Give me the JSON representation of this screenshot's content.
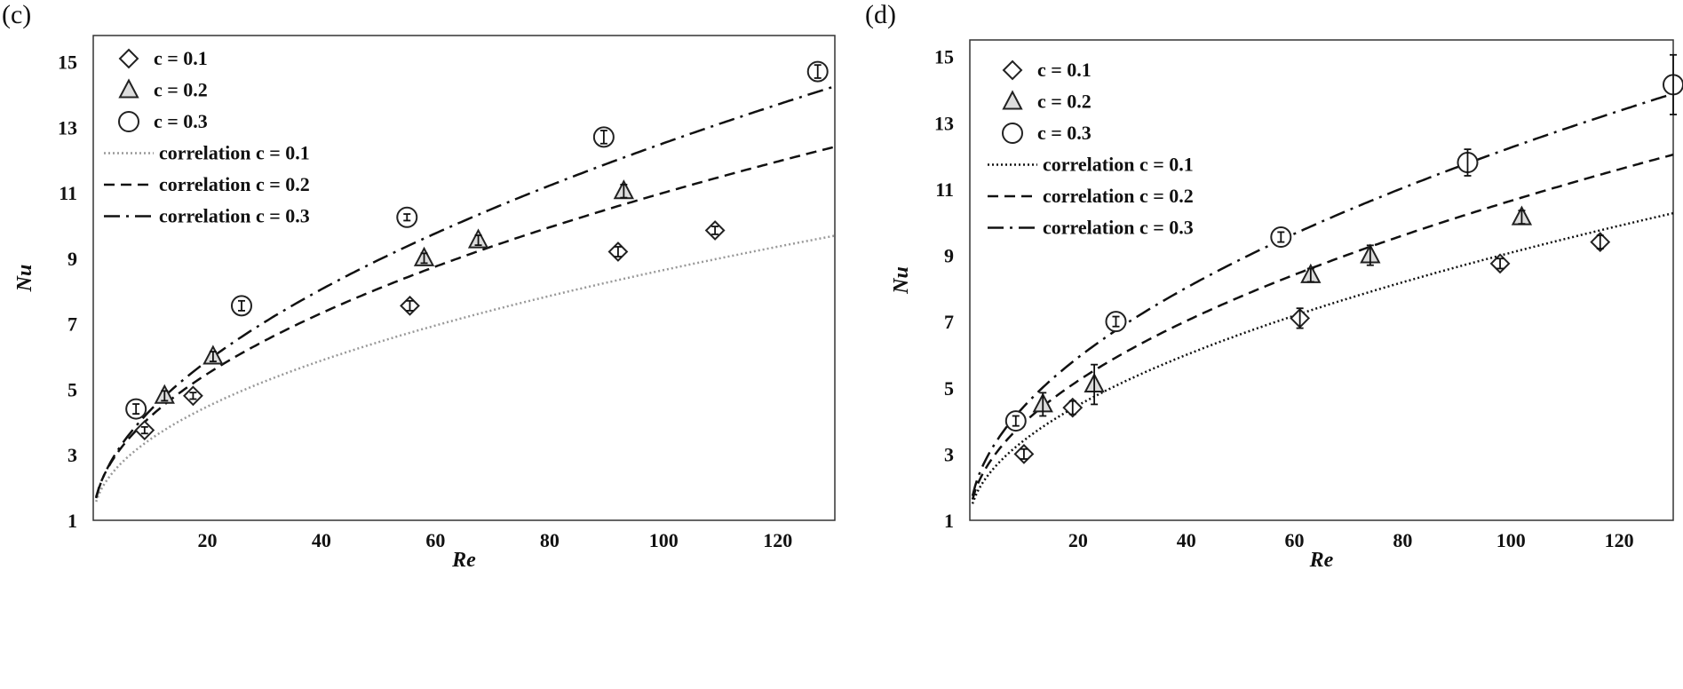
{
  "chart_data": [
    {
      "type": "scatter",
      "panel_label": "(c)",
      "xlabel": "Re",
      "ylabel": "Nu",
      "xlim": [
        0,
        130
      ],
      "ylim": [
        1,
        15.8
      ],
      "xticks": [
        20,
        40,
        60,
        80,
        100,
        120
      ],
      "yticks": [
        1,
        3,
        5,
        7,
        9,
        11,
        13,
        15
      ],
      "legend_position": "top-left",
      "series": [
        {
          "name": "c = 0.1",
          "marker": "diamond",
          "points": [
            [
              9,
              3.75
            ],
            [
              17.5,
              4.8
            ],
            [
              55.5,
              7.55
            ],
            [
              92,
              9.2
            ],
            [
              109,
              9.85
            ]
          ],
          "errors": [
            0.1,
            0.1,
            0.15,
            0.15,
            0.12
          ]
        },
        {
          "name": "c = 0.2",
          "marker": "triangle",
          "points": [
            [
              12.5,
              4.8
            ],
            [
              21,
              6.0
            ],
            [
              58,
              9.0
            ],
            [
              67.5,
              9.55
            ],
            [
              93,
              11.05
            ]
          ],
          "errors": [
            0.15,
            0.15,
            0.15,
            0.15,
            0.2
          ]
        },
        {
          "name": "c = 0.3",
          "marker": "circle",
          "points": [
            [
              7.5,
              4.4
            ],
            [
              26,
              7.55
            ],
            [
              55,
              10.25
            ],
            [
              89.5,
              12.7
            ],
            [
              127,
              14.7
            ]
          ],
          "errors": [
            0.15,
            0.15,
            0.1,
            0.2,
            0.2
          ]
        },
        {
          "name": "correlation c = 0.1",
          "style": "dotted",
          "color": "#999999",
          "a": 0.8,
          "b": 0.49
        },
        {
          "name": "correlation c = 0.2",
          "style": "dashed",
          "color": "#111111",
          "a": 1.0,
          "b": 0.5
        },
        {
          "name": "correlation c = 0.3",
          "style": "dashdot",
          "color": "#111111",
          "a": 0.98,
          "b": 0.535
        }
      ]
    },
    {
      "type": "scatter",
      "panel_label": "(d)",
      "xlabel": "Re",
      "ylabel": "Nu",
      "xlim": [
        0,
        130
      ],
      "ylim": [
        1,
        15.5
      ],
      "xticks": [
        20,
        40,
        60,
        80,
        100,
        120
      ],
      "yticks": [
        1,
        3,
        5,
        7,
        9,
        11,
        13,
        15
      ],
      "legend_position": "top-left",
      "series": [
        {
          "name": "c = 0.1",
          "marker": "diamond",
          "points": [
            [
              10,
              3.0
            ],
            [
              19,
              4.4
            ],
            [
              61,
              7.1
            ],
            [
              98,
              8.75
            ],
            [
              116.5,
              9.4
            ]
          ],
          "errors": [
            0.15,
            0.2,
            0.3,
            0.15,
            0.2
          ]
        },
        {
          "name": "c = 0.2",
          "marker": "triangle",
          "points": [
            [
              13.5,
              4.5
            ],
            [
              23,
              5.1
            ],
            [
              63,
              8.4
            ],
            [
              74,
              9.0
            ],
            [
              102,
              10.15
            ]
          ],
          "errors": [
            0.35,
            0.6,
            0.2,
            0.3,
            0.2
          ]
        },
        {
          "name": "c = 0.3",
          "marker": "circle",
          "points": [
            [
              8.5,
              4.0
            ],
            [
              27,
              7.0
            ],
            [
              57.5,
              9.55
            ],
            [
              92,
              11.8
            ],
            [
              130,
              14.15
            ]
          ],
          "errors": [
            0.15,
            0.15,
            0.15,
            0.4,
            0.9
          ]
        },
        {
          "name": "correlation c = 0.1",
          "style": "dotted",
          "color": "#111111",
          "a": 0.72,
          "b": 0.525
        },
        {
          "name": "correlation c = 0.2",
          "style": "dashed",
          "color": "#111111",
          "a": 0.9,
          "b": 0.515
        },
        {
          "name": "correlation c = 0.3",
          "style": "dashdot",
          "color": "#111111",
          "a": 1.05,
          "b": 0.515
        }
      ]
    }
  ]
}
